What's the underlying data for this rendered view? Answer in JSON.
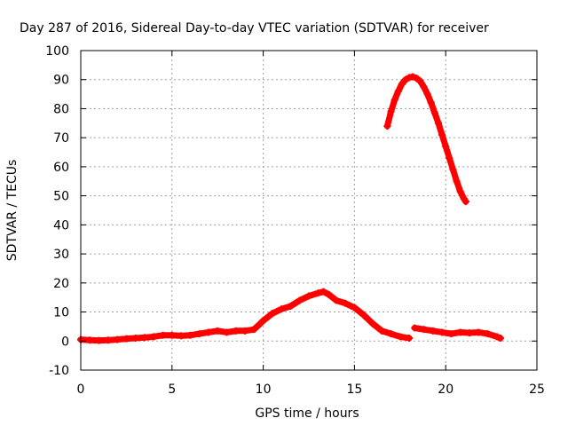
{
  "chart_data": {
    "type": "scatter",
    "title": "Day 287 of 2016, Sidereal Day-to-day VTEC variation (SDTVAR) for receiver",
    "xlabel": "GPS time / hours",
    "ylabel": "SDTVAR / TECUs",
    "xlim": [
      0,
      25
    ],
    "ylim": [
      -10,
      100
    ],
    "x_ticks": [
      0,
      5,
      10,
      15,
      20,
      25
    ],
    "y_ticks": [
      -10,
      0,
      10,
      20,
      30,
      40,
      50,
      60,
      70,
      80,
      90,
      100
    ],
    "grid": true,
    "legend": "none",
    "marker": "+",
    "color": "#ff0000",
    "series": [
      {
        "x": [
          0.0,
          0.5,
          1.0,
          1.5,
          2.0,
          2.5,
          3.0,
          3.5,
          4.0,
          4.5,
          5.0,
          5.5,
          6.0,
          6.5,
          7.0,
          7.5,
          8.0,
          8.5,
          9.0,
          9.5,
          10.0,
          10.5,
          11.0,
          11.5,
          12.0,
          12.5,
          13.0,
          13.3,
          13.6,
          14.0,
          14.5,
          15.0,
          15.5,
          16.0,
          16.5,
          17.0,
          17.5,
          18.0
        ],
        "y": [
          0.5,
          0.3,
          0.2,
          0.3,
          0.5,
          0.8,
          1.0,
          1.2,
          1.5,
          2.0,
          2.0,
          1.8,
          2.0,
          2.5,
          3.0,
          3.5,
          3.0,
          3.5,
          3.5,
          4.0,
          7.0,
          9.5,
          11.0,
          12.0,
          14.0,
          15.5,
          16.5,
          17.0,
          16.0,
          14.0,
          13.0,
          11.5,
          9.0,
          6.0,
          3.5,
          2.5,
          1.5,
          1.0
        ]
      },
      {
        "x": [
          18.3,
          18.8,
          19.3,
          19.8,
          20.3,
          20.8,
          21.3,
          21.8,
          22.3,
          22.8,
          23.0
        ],
        "y": [
          4.5,
          4.0,
          3.5,
          3.0,
          2.5,
          3.0,
          2.8,
          3.0,
          2.5,
          1.5,
          1.0
        ]
      },
      {
        "x": [
          16.8,
          17.0,
          17.2,
          17.4,
          17.6,
          17.8,
          18.0,
          18.2,
          18.4,
          18.6,
          18.8,
          19.0,
          19.2,
          19.4,
          19.6,
          19.8,
          20.0,
          20.2,
          20.4,
          20.6,
          20.8,
          21.0,
          21.1
        ],
        "y": [
          74.0,
          79.0,
          83.0,
          86.0,
          88.5,
          90.0,
          90.7,
          91.0,
          90.5,
          89.5,
          87.5,
          85.0,
          82.0,
          78.5,
          75.0,
          71.0,
          67.0,
          63.0,
          59.0,
          55.0,
          51.5,
          49.0,
          48.0
        ]
      }
    ]
  }
}
